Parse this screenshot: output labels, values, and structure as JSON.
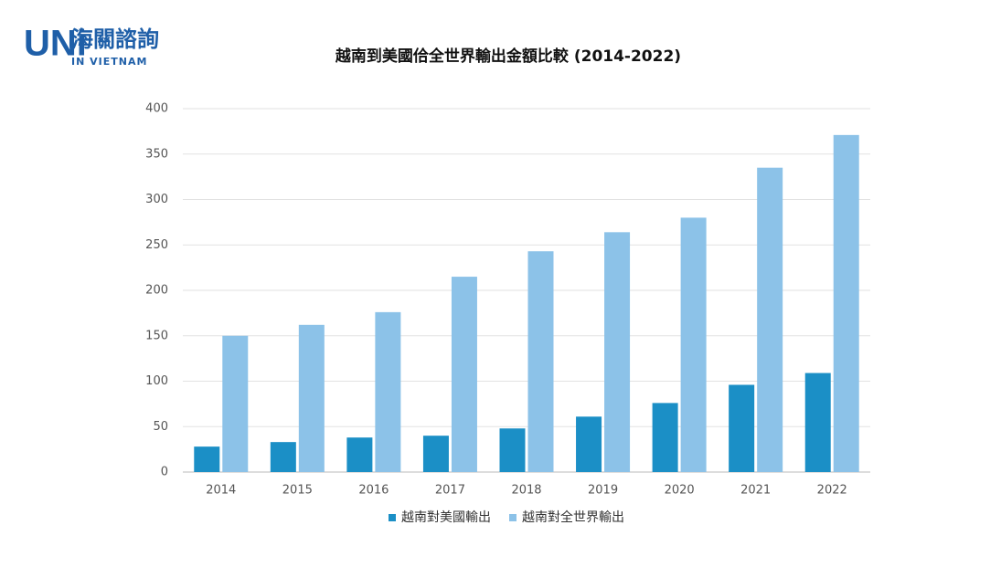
{
  "logo": {
    "mark": "UNi",
    "name": "海關諮詢",
    "tagline": "IN VIETNAM"
  },
  "chart_data": {
    "type": "bar",
    "title": "越南到美國佮全世界輸出金額比較 (2014-2022)",
    "categories": [
      "2014",
      "2015",
      "2016",
      "2017",
      "2018",
      "2019",
      "2020",
      "2021",
      "2022"
    ],
    "series": [
      {
        "name": "越南對美國輸出",
        "color": "#1b8fc6",
        "values": [
          28,
          33,
          38,
          40,
          48,
          61,
          76,
          96,
          109
        ]
      },
      {
        "name": "越南對全世界輸出",
        "color": "#8cc2e8",
        "values": [
          150,
          162,
          176,
          215,
          243,
          264,
          280,
          335,
          371
        ]
      }
    ],
    "ylim": [
      0,
      400
    ],
    "yticks": [
      0,
      50,
      100,
      150,
      200,
      250,
      300,
      350,
      400
    ],
    "grid": true,
    "legend": "bottom"
  }
}
